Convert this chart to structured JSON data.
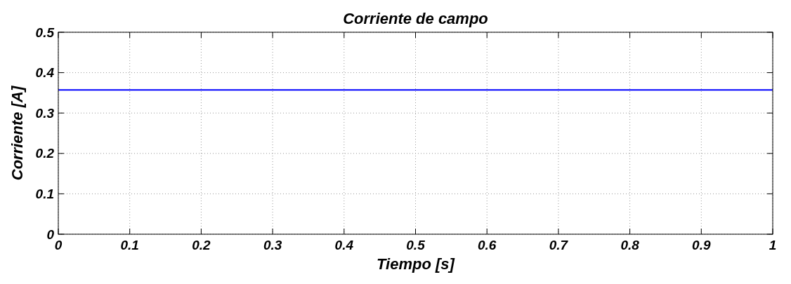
{
  "chart_data": {
    "type": "line",
    "title": "Corriente de campo",
    "xlabel": "Tiempo [s]",
    "ylabel": "Corriente [A]",
    "x": [
      0,
      1
    ],
    "series": [
      {
        "color": "#0000ff",
        "values": [
          0.357,
          0.357
        ]
      }
    ],
    "xlim": [
      0,
      1
    ],
    "xticks": [
      0,
      0.1,
      0.2,
      0.3,
      0.4,
      0.5,
      0.6,
      0.7,
      0.8,
      0.9,
      1
    ],
    "ylim": [
      0,
      0.5
    ],
    "yticks": [
      0,
      0.1,
      0.2,
      0.3,
      0.4,
      0.5
    ],
    "grid": true,
    "line_style": "solid",
    "marker": "none"
  }
}
